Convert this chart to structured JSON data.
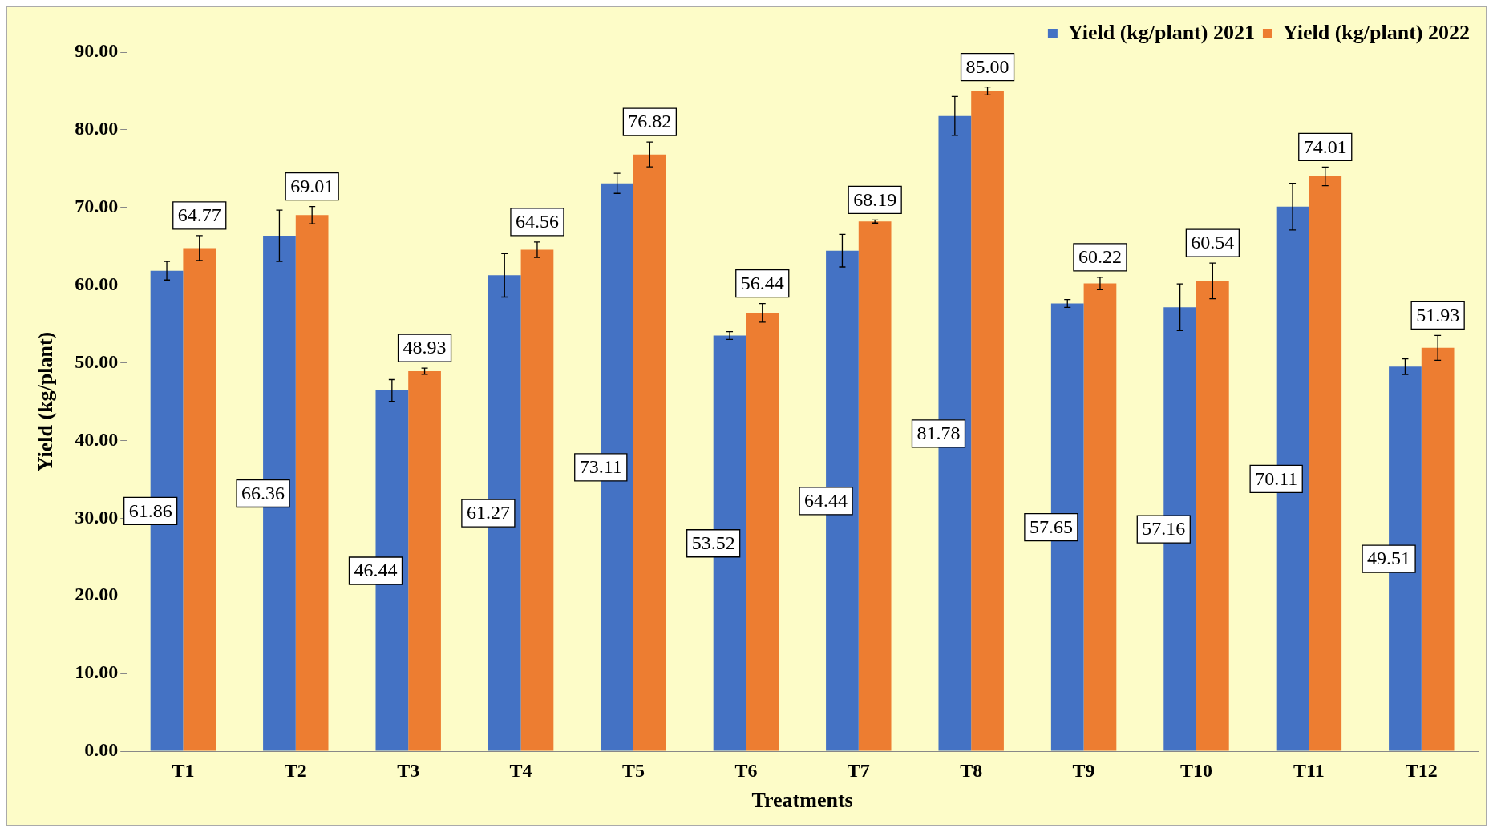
{
  "chart_data": {
    "type": "bar",
    "xlabel": "Treatments",
    "ylabel": "Yield (kg/plant)",
    "categories": [
      "T1",
      "T2",
      "T3",
      "T4",
      "T5",
      "T6",
      "T7",
      "T8",
      "T9",
      "T10",
      "T11",
      "T12"
    ],
    "series": [
      {
        "name": "Yield (kg/plant) 2021",
        "color": "#4472c4",
        "values": [
          61.86,
          66.36,
          46.44,
          61.27,
          73.11,
          53.52,
          64.44,
          81.78,
          57.65,
          57.16,
          70.11,
          49.51
        ],
        "errors": [
          1.2,
          3.3,
          1.4,
          2.8,
          1.3,
          0.5,
          2.1,
          2.5,
          0.5,
          3.0,
          3.0,
          1.0
        ],
        "value_labels": [
          "61.86",
          "66.36",
          "46.44",
          "61.27",
          "73.11",
          "53.52",
          "64.44",
          "81.78",
          "57.65",
          "57.16",
          "70.11",
          "49.51"
        ]
      },
      {
        "name": "Yield (kg/plant) 2022",
        "color": "#ed7d31",
        "values": [
          64.77,
          69.01,
          48.93,
          64.56,
          76.82,
          56.44,
          68.19,
          85.0,
          60.22,
          60.54,
          74.01,
          51.93
        ],
        "errors": [
          1.6,
          1.1,
          0.4,
          1.0,
          1.6,
          1.2,
          0.2,
          0.5,
          0.8,
          2.3,
          1.2,
          1.6
        ],
        "value_labels": [
          "64.77",
          "69.01",
          "48.93",
          "64.56",
          "76.82",
          "56.44",
          "68.19",
          "85.00",
          "60.22",
          "60.54",
          "74.01",
          "51.93"
        ]
      }
    ],
    "ylim": [
      0,
      90
    ],
    "yticks": [
      {
        "value": 0,
        "label": "0.00"
      },
      {
        "value": 10,
        "label": "10.00"
      },
      {
        "value": 20,
        "label": "20.00"
      },
      {
        "value": 30,
        "label": "30.00"
      },
      {
        "value": 40,
        "label": "40.00"
      },
      {
        "value": 50,
        "label": "50.00"
      },
      {
        "value": 60,
        "label": "60.00"
      },
      {
        "value": 70,
        "label": "70.00"
      },
      {
        "value": 80,
        "label": "80.00"
      },
      {
        "value": 90,
        "label": "90.00"
      }
    ],
    "grid": false,
    "legend": "top right"
  }
}
